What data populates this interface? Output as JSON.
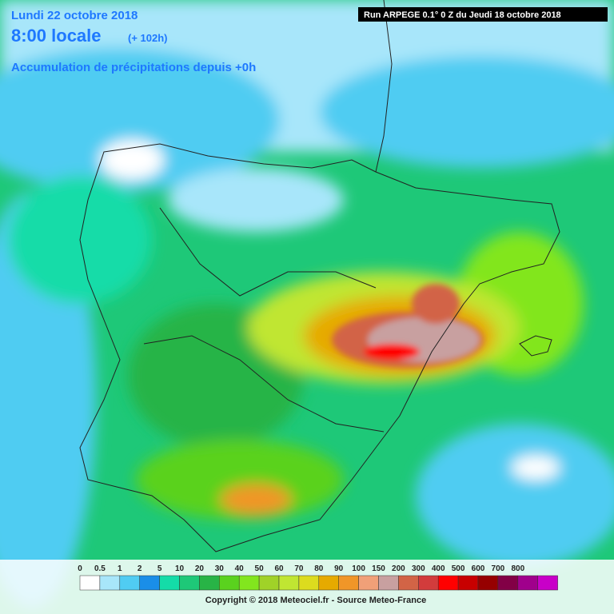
{
  "header": {
    "date": "Lundi 22 octobre 2018",
    "time": "8:00 locale",
    "lead": "(+ 102h)",
    "product": "Accumulation de précipitations depuis +0h",
    "run": "Run ARPEGE 0.1° 0 Z du Jeudi 18 octobre 2018"
  },
  "legend": {
    "items": [
      {
        "label": "0",
        "color": "#ffffff"
      },
      {
        "label": "0.5",
        "color": "#a8e6fa"
      },
      {
        "label": "1",
        "color": "#50ccf2"
      },
      {
        "label": "2",
        "color": "#1a8ee8"
      },
      {
        "label": "5",
        "color": "#14dca8"
      },
      {
        "label": "10",
        "color": "#1ec878"
      },
      {
        "label": "20",
        "color": "#28b446"
      },
      {
        "label": "30",
        "color": "#5ad21e"
      },
      {
        "label": "40",
        "color": "#82e61e"
      },
      {
        "label": "50",
        "color": "#a0d228"
      },
      {
        "label": "60",
        "color": "#c0e632"
      },
      {
        "label": "70",
        "color": "#dcdc1e"
      },
      {
        "label": "80",
        "color": "#e6aa00"
      },
      {
        "label": "90",
        "color": "#f09628"
      },
      {
        "label": "100",
        "color": "#f0a078"
      },
      {
        "label": "150",
        "color": "#c8a0a0"
      },
      {
        "label": "200",
        "color": "#d26446"
      },
      {
        "label": "300",
        "color": "#d23c3c"
      },
      {
        "label": "400",
        "color": "#ff0000"
      },
      {
        "label": "500",
        "color": "#c80000"
      },
      {
        "label": "600",
        "color": "#960000"
      },
      {
        "label": "700",
        "color": "#820046"
      },
      {
        "label": "800",
        "color": "#a0008c"
      }
    ],
    "overflow_color": "#c800c8"
  },
  "footer": {
    "copyright": "Copyright © 2018 Meteociel.fr - Source Meteo-France"
  }
}
